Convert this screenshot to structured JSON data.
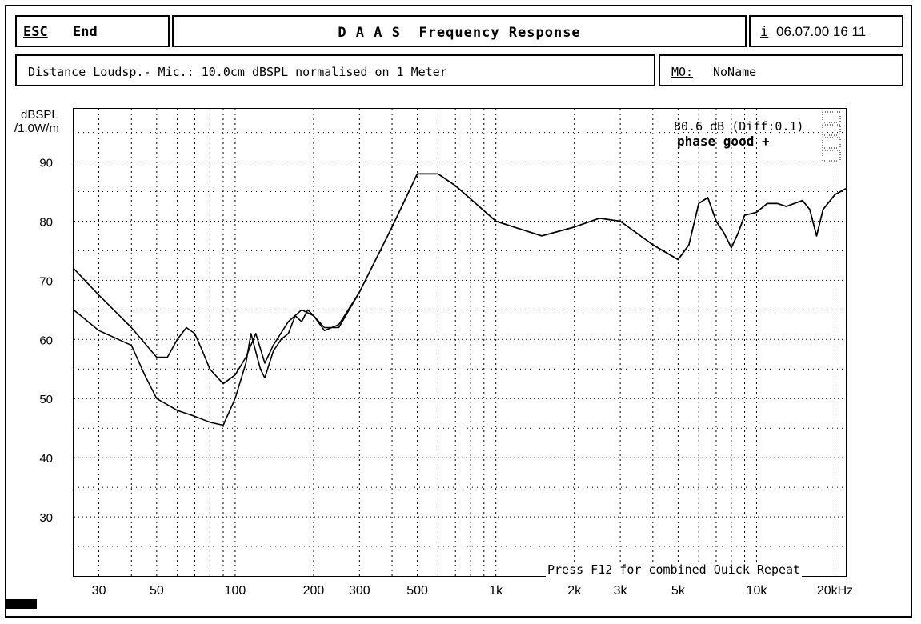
{
  "header": {
    "esc_key": "ESC",
    "end_label": "End",
    "title": "D A A S  Frequency Response",
    "info_key": "i",
    "datetime": "06.07.00 16 11"
  },
  "subheader": {
    "description": "Distance Loudsp.- Mic.: 10.0cm dBSPL normalised on 1 Meter",
    "mo_key": "MO:",
    "mo_value": "NoName"
  },
  "plot": {
    "ylabel_line1": "dBSPL",
    "ylabel_line2": "/1.0W/m",
    "level_readout": "80.6 dB (Diff:0.1)",
    "phase_status": "phase good +",
    "hint": "Press F12 for combined Quick Repeat"
  },
  "chart_data": {
    "type": "line",
    "title": "D A A S Frequency Response",
    "xlabel": "Hz",
    "ylabel": "dBSPL /1.0W/m",
    "xscale": "log",
    "xlim": [
      24,
      22000
    ],
    "ylim": [
      20,
      99
    ],
    "grid": true,
    "x_ticks": [
      "30",
      "50",
      "100",
      "200",
      "300",
      "500",
      "1k",
      "2k",
      "3k",
      "5k",
      "10k",
      "20kHz"
    ],
    "y_ticks": [
      "90",
      "80",
      "70",
      "60",
      "50",
      "40",
      "30"
    ],
    "series": [
      {
        "values": [
          [
            24,
            72
          ],
          [
            30,
            67.5
          ],
          [
            40,
            62
          ],
          [
            50,
            57
          ],
          [
            55,
            57
          ],
          [
            60,
            60
          ],
          [
            65,
            62
          ],
          [
            70,
            61
          ],
          [
            75,
            58
          ],
          [
            80,
            55
          ],
          [
            90,
            52.5
          ],
          [
            100,
            54
          ],
          [
            110,
            57
          ],
          [
            120,
            61
          ],
          [
            130,
            56
          ],
          [
            140,
            59
          ],
          [
            160,
            63
          ],
          [
            180,
            65
          ],
          [
            200,
            64
          ],
          [
            220,
            61.5
          ],
          [
            250,
            62.5
          ],
          [
            300,
            68
          ],
          [
            400,
            79
          ],
          [
            500,
            88
          ],
          [
            600,
            88
          ],
          [
            700,
            86
          ],
          [
            1000,
            80
          ],
          [
            1500,
            77.5
          ],
          [
            2000,
            79
          ],
          [
            2500,
            80.5
          ],
          [
            3000,
            80
          ],
          [
            4000,
            76
          ],
          [
            5000,
            73.5
          ],
          [
            5500,
            76
          ],
          [
            6000,
            83
          ],
          [
            6500,
            84
          ],
          [
            7000,
            80
          ],
          [
            7500,
            78
          ],
          [
            8000,
            75.5
          ],
          [
            8500,
            78
          ],
          [
            9000,
            81
          ],
          [
            10000,
            81.5
          ],
          [
            11000,
            83
          ],
          [
            12000,
            83
          ],
          [
            13000,
            82.5
          ],
          [
            15000,
            83.5
          ],
          [
            16000,
            82
          ],
          [
            17000,
            77.5
          ],
          [
            18000,
            82
          ],
          [
            20000,
            84.5
          ],
          [
            22000,
            85.5
          ]
        ]
      },
      {
        "values": [
          [
            24,
            65
          ],
          [
            30,
            61.5
          ],
          [
            40,
            59
          ],
          [
            45,
            54
          ],
          [
            50,
            50
          ],
          [
            60,
            48
          ],
          [
            70,
            47
          ],
          [
            80,
            46
          ],
          [
            90,
            45.5
          ],
          [
            100,
            50
          ],
          [
            110,
            56
          ],
          [
            115,
            61
          ],
          [
            125,
            55
          ],
          [
            130,
            53.5
          ],
          [
            140,
            58
          ],
          [
            150,
            60
          ],
          [
            160,
            61
          ],
          [
            170,
            64
          ],
          [
            180,
            63
          ],
          [
            190,
            65
          ],
          [
            200,
            64
          ],
          [
            220,
            62
          ],
          [
            250,
            62
          ],
          [
            300,
            68
          ],
          [
            400,
            79
          ],
          [
            500,
            88
          ],
          [
            600,
            88
          ],
          [
            700,
            86
          ],
          [
            1000,
            80
          ],
          [
            1500,
            77.5
          ],
          [
            2000,
            79
          ],
          [
            2500,
            80.5
          ],
          [
            3000,
            80
          ],
          [
            4000,
            76
          ],
          [
            5000,
            73.5
          ],
          [
            5500,
            76
          ],
          [
            6000,
            83
          ],
          [
            6500,
            84
          ],
          [
            7000,
            80
          ],
          [
            7500,
            78
          ],
          [
            8000,
            75.5
          ],
          [
            8500,
            78
          ],
          [
            9000,
            81
          ],
          [
            10000,
            81.5
          ],
          [
            11000,
            83
          ],
          [
            12000,
            83
          ],
          [
            13000,
            82.5
          ],
          [
            15000,
            83.5
          ],
          [
            16000,
            82
          ],
          [
            17000,
            77.5
          ],
          [
            18000,
            82
          ],
          [
            20000,
            84.5
          ],
          [
            22000,
            85.5
          ]
        ]
      }
    ]
  }
}
